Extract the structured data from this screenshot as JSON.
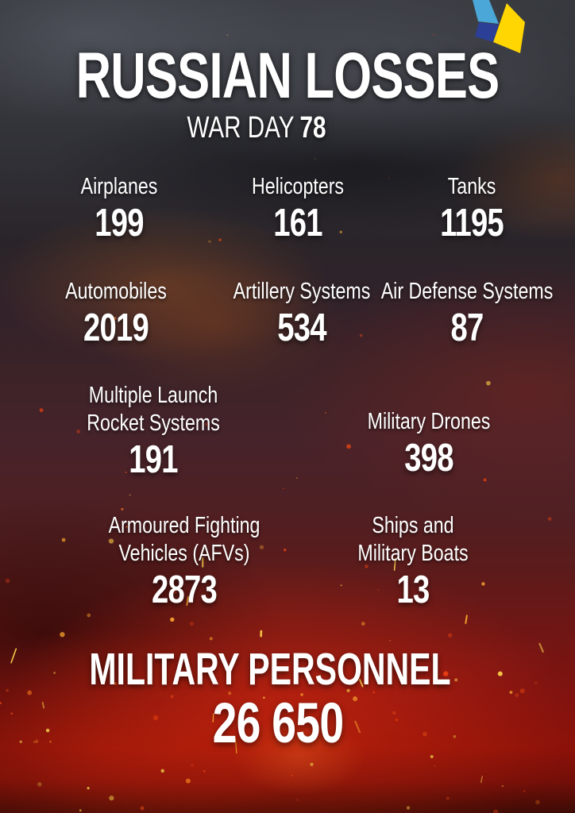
{
  "header": {
    "title": "RUSSIAN LOSSES",
    "subtitle_prefix": "WAR DAY",
    "war_day": "78"
  },
  "logo": {
    "name": "ukraine-emblem",
    "colors": {
      "light_blue": "#4aa7d8",
      "dark_blue": "#2b3f96",
      "yellow": "#ffd502"
    }
  },
  "stats": [
    {
      "id": "airplanes",
      "label": "Airplanes",
      "value": "199"
    },
    {
      "id": "helicopters",
      "label": "Helicopters",
      "value": "161"
    },
    {
      "id": "tanks",
      "label": "Tanks",
      "value": "1195"
    },
    {
      "id": "automobiles",
      "label": "Automobiles",
      "value": "2019"
    },
    {
      "id": "artillery",
      "label": "Artillery Systems",
      "value": "534"
    },
    {
      "id": "air-defense",
      "label": "Air Defense Systems",
      "value": "87"
    },
    {
      "id": "mlrs",
      "label": "Multiple Launch\nRocket Systems",
      "value": "191"
    },
    {
      "id": "drones",
      "label": "Military Drones",
      "value": "398"
    },
    {
      "id": "afv",
      "label": "Armoured Fighting\nVehicles (AFVs)",
      "value": "2873"
    },
    {
      "id": "ships",
      "label": "Ships and\nMilitary Boats",
      "value": "13"
    }
  ],
  "footer": {
    "label": "MILITARY PERSONNEL",
    "value": "26 650"
  },
  "colors": {
    "text": "#ffffff",
    "fire_red": "#a1150a",
    "smoke_gray": "#3d4046",
    "ember_colors": [
      "#ffd24a",
      "#ffab2e",
      "#ff7a1e",
      "#ff4a12",
      "#d43b12"
    ]
  },
  "chart_data": {
    "type": "table",
    "title": "RUSSIAN LOSSES",
    "subtitle": "WAR DAY 78",
    "categories": [
      "Airplanes",
      "Helicopters",
      "Tanks",
      "Automobiles",
      "Artillery Systems",
      "Air Defense Systems",
      "Multiple Launch Rocket Systems",
      "Military Drones",
      "Armoured Fighting Vehicles (AFVs)",
      "Ships and Military Boats",
      "Military Personnel"
    ],
    "values": [
      199,
      161,
      1195,
      2019,
      534,
      87,
      191,
      398,
      2873,
      13,
      26650
    ]
  }
}
